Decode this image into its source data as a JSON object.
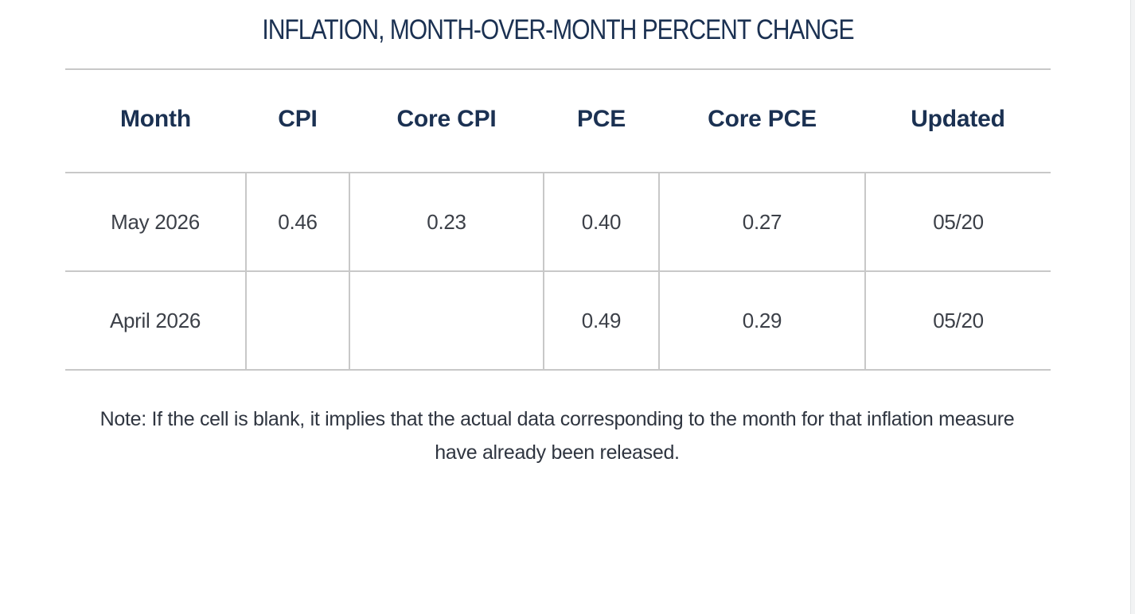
{
  "title": "INFLATION, MONTH-OVER-MONTH PERCENT CHANGE",
  "table": {
    "columns": [
      "Month",
      "CPI",
      "Core CPI",
      "PCE",
      "Core PCE",
      "Updated"
    ],
    "rows": [
      [
        "May 2026",
        "0.46",
        "0.23",
        "0.40",
        "0.27",
        "05/20"
      ],
      [
        "April 2026",
        "",
        "",
        "0.49",
        "0.29",
        "05/20"
      ]
    ]
  },
  "note": "Note: If the cell is blank, it implies that the actual data corresponding to the month for that inflation measure have already been released."
}
